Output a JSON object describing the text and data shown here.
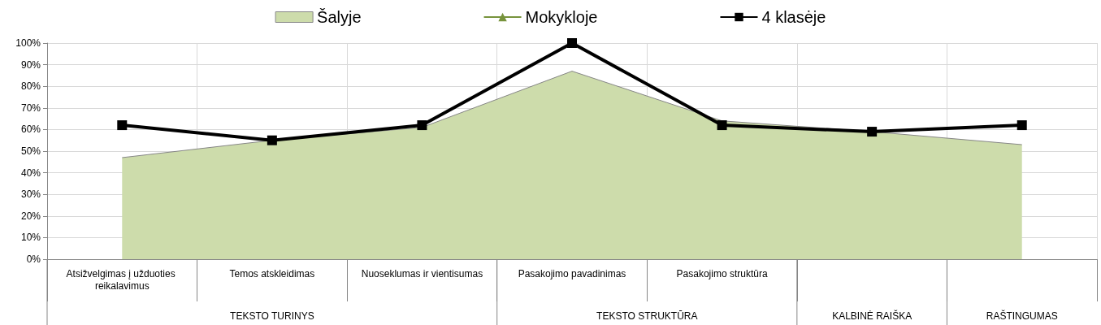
{
  "chart_data": {
    "type": "area",
    "categories": [
      "Atsižvelgimas į užduoties reikalavimus",
      "Temos atskleidimas",
      "Nuoseklumas ir vientisumas",
      "Pasakojimo pavadinimas",
      "Pasakojimo struktūra",
      null,
      null
    ],
    "series": [
      {
        "name": "Šalyje",
        "color": "#cddcab",
        "values": [
          47,
          55,
          61,
          87,
          64,
          59,
          53
        ]
      },
      {
        "name": "Mokykloje",
        "type": "line",
        "color": "#77933c",
        "marker": "triangle",
        "values": [
          null,
          null,
          null,
          null,
          null,
          null,
          null
        ]
      },
      {
        "name": "4 klasėje",
        "type": "line",
        "color": "#000000",
        "marker": "square",
        "values": [
          62,
          55,
          62,
          100,
          62,
          59,
          62
        ]
      }
    ],
    "ylim": [
      0,
      100
    ],
    "yticks": [
      {
        "value": 0,
        "label": "0%"
      },
      {
        "value": 10,
        "label": "10%"
      },
      {
        "value": 20,
        "label": "20%"
      },
      {
        "value": 30,
        "label": "30%"
      },
      {
        "value": 40,
        "label": "40%"
      },
      {
        "value": 50,
        "label": "50%"
      },
      {
        "value": 60,
        "label": "60%"
      },
      {
        "value": 70,
        "label": "70%"
      },
      {
        "value": 80,
        "label": "80%"
      },
      {
        "value": 90,
        "label": "90%"
      },
      {
        "value": 100,
        "label": "100%"
      }
    ],
    "grid": true,
    "legend": "top",
    "annotations": [
      "TEKSTO TURINYS",
      "TEKSTO STRUKTŪRA",
      "KALBINĖ RAIŠKA",
      "RAŠTINGUMAS"
    ]
  }
}
